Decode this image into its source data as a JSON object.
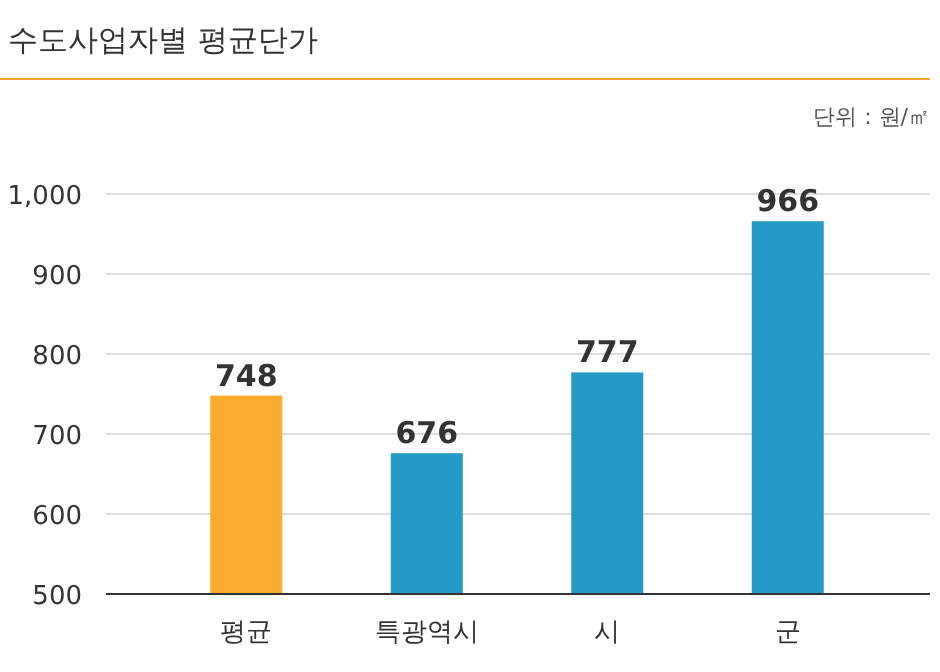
{
  "chart_data": {
    "type": "bar",
    "title": "수도사업자별 평균단가",
    "annotations": [
      "단위 : 원/㎡"
    ],
    "categories": [
      "평균",
      "특광역시",
      "시",
      "군"
    ],
    "values": [
      748,
      676,
      777,
      966
    ],
    "colors": [
      "#fbab2e",
      "#249bc6",
      "#249bc6",
      "#249bc6"
    ],
    "ylim": [
      500,
      1000
    ],
    "yticks": [
      500,
      600,
      700,
      800,
      900,
      {
        "value": 1000,
        "label": "1,000"
      }
    ],
    "grid": "y",
    "data_labels": true
  }
}
